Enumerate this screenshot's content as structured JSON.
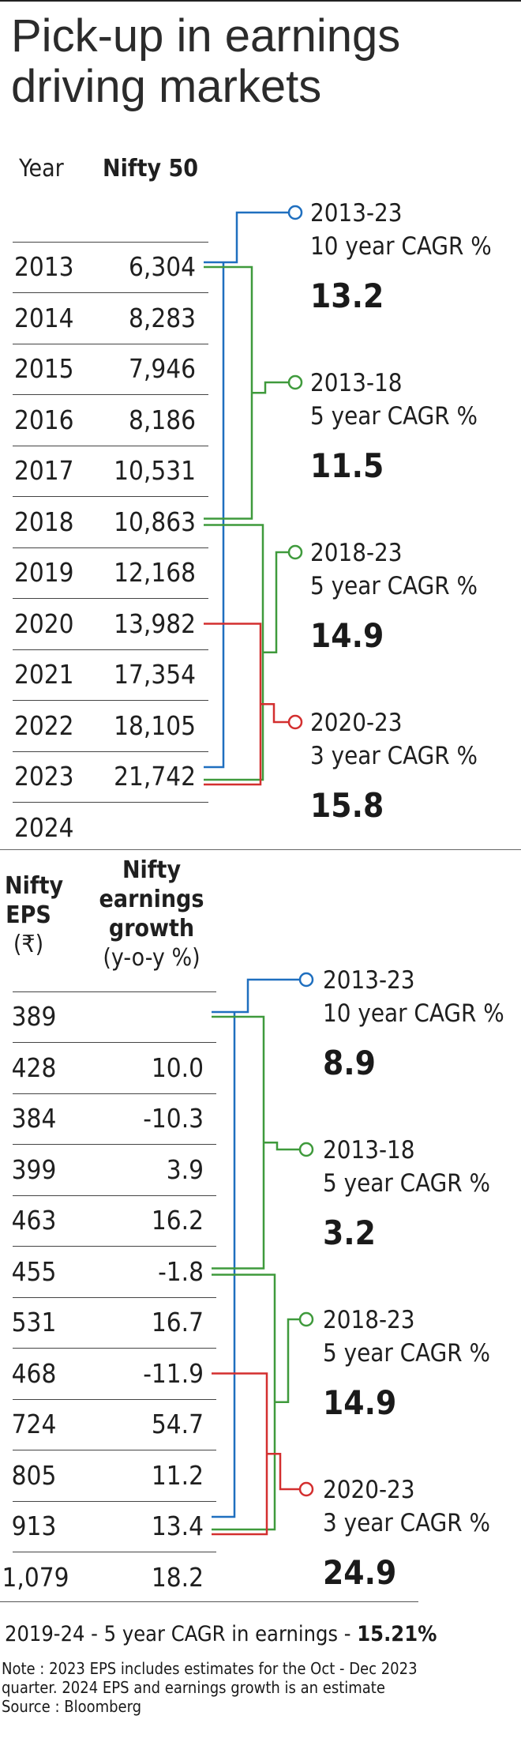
{
  "title": "Pick-up in earnings driving markets",
  "colors": {
    "blue": "#1f6fbf",
    "green": "#3f9a3c",
    "red": "#d32f2f"
  },
  "top": {
    "col_year": "Year",
    "col_nifty": "Nifty 50",
    "rows": [
      {
        "year": "2013",
        "value": "6,304"
      },
      {
        "year": "2014",
        "value": "8,283"
      },
      {
        "year": "2015",
        "value": "7,946"
      },
      {
        "year": "2016",
        "value": "8,186"
      },
      {
        "year": "2017",
        "value": "10,531"
      },
      {
        "year": "2018",
        "value": "10,863"
      },
      {
        "year": "2019",
        "value": "12,168"
      },
      {
        "year": "2020",
        "value": "13,982"
      },
      {
        "year": "2021",
        "value": "17,354"
      },
      {
        "year": "2022",
        "value": "18,105"
      },
      {
        "year": "2023",
        "value": "21,742"
      },
      {
        "year": "2024",
        "value": ""
      }
    ],
    "cagr": [
      {
        "period": "2013-23",
        "label": "10 year CAGR %",
        "value": "13.2",
        "color": "blue",
        "from": 0,
        "to": 10
      },
      {
        "period": "2013-18",
        "label": "5 year CAGR %",
        "value": "11.5",
        "color": "green",
        "from": 0,
        "to": 5
      },
      {
        "period": "2018-23",
        "label": "5 year CAGR %",
        "value": "14.9",
        "color": "green",
        "from": 5,
        "to": 10
      },
      {
        "period": "2020-23",
        "label": "3 year CAGR %",
        "value": "15.8",
        "color": "red",
        "from": 7,
        "to": 10
      }
    ]
  },
  "bottom": {
    "col_eps": "Nifty EPS (₹)",
    "col_eps_lines": [
      "Nifty",
      "EPS",
      "(₹)"
    ],
    "col_growth_lines": [
      "Nifty",
      "earnings",
      "growth",
      "(y-o-y %)"
    ],
    "rows": [
      {
        "eps": "389",
        "growth": ""
      },
      {
        "eps": "428",
        "growth": "10.0"
      },
      {
        "eps": "384",
        "growth": "-10.3"
      },
      {
        "eps": "399",
        "growth": "3.9"
      },
      {
        "eps": "463",
        "growth": "16.2"
      },
      {
        "eps": "455",
        "growth": "-1.8"
      },
      {
        "eps": "531",
        "growth": "16.7"
      },
      {
        "eps": "468",
        "growth": "-11.9"
      },
      {
        "eps": "724",
        "growth": "54.7"
      },
      {
        "eps": "805",
        "growth": "11.2"
      },
      {
        "eps": "913",
        "growth": "13.4"
      },
      {
        "eps": "1,079",
        "growth": "18.2"
      }
    ],
    "cagr": [
      {
        "period": "2013-23",
        "label": "10 year CAGR %",
        "value": "8.9",
        "color": "blue",
        "from": 0,
        "to": 10
      },
      {
        "period": "2013-18",
        "label": "5 year CAGR %",
        "value": "3.2",
        "color": "green",
        "from": 0,
        "to": 5
      },
      {
        "period": "2018-23",
        "label": "5 year CAGR %",
        "value": "14.9",
        "color": "green",
        "from": 5,
        "to": 10
      },
      {
        "period": "2020-23",
        "label": "3 year CAGR %",
        "value": "24.9",
        "color": "red",
        "from": 7,
        "to": 10
      }
    ]
  },
  "summary": {
    "text": "2019-24 - 5 year CAGR in earnings - ",
    "value": "15.21%"
  },
  "note": {
    "line1": "Note : 2023 EPS includes estimates for the Oct - Dec 2023",
    "line2": "quarter. 2024 EPS and earnings growth is an estimate",
    "line3": "Source : Bloomberg"
  },
  "chart_data": [
    {
      "type": "table",
      "columns": [
        "Year",
        "Nifty 50"
      ],
      "x": [
        2013,
        2014,
        2015,
        2016,
        2017,
        2018,
        2019,
        2020,
        2021,
        2022,
        2023,
        2024
      ],
      "series": [
        {
          "name": "Nifty 50",
          "values": [
            6304,
            8283,
            7946,
            8186,
            10531,
            10863,
            12168,
            13982,
            17354,
            18105,
            21742,
            null
          ]
        }
      ],
      "annotations": [
        {
          "period": "2013-23",
          "label": "10 year CAGR %",
          "value": 13.2
        },
        {
          "period": "2013-18",
          "label": "5 year CAGR %",
          "value": 11.5
        },
        {
          "period": "2018-23",
          "label": "5 year CAGR %",
          "value": 14.9
        },
        {
          "period": "2020-23",
          "label": "3 year CAGR %",
          "value": 15.8
        }
      ]
    },
    {
      "type": "table",
      "columns": [
        "Nifty EPS (₹)",
        "Nifty earnings growth (y-o-y %)"
      ],
      "x": [
        2013,
        2014,
        2015,
        2016,
        2017,
        2018,
        2019,
        2020,
        2021,
        2022,
        2023,
        2024
      ],
      "series": [
        {
          "name": "Nifty EPS (₹)",
          "values": [
            389,
            428,
            384,
            399,
            463,
            455,
            531,
            468,
            724,
            805,
            913,
            1079
          ]
        },
        {
          "name": "Nifty earnings growth (y-o-y %)",
          "values": [
            null,
            10.0,
            -10.3,
            3.9,
            16.2,
            -1.8,
            16.7,
            -11.9,
            54.7,
            11.2,
            13.4,
            18.2
          ]
        }
      ],
      "annotations": [
        {
          "period": "2013-23",
          "label": "10 year CAGR %",
          "value": 8.9
        },
        {
          "period": "2013-18",
          "label": "5 year CAGR %",
          "value": 3.2
        },
        {
          "period": "2018-23",
          "label": "5 year CAGR %",
          "value": 14.9
        },
        {
          "period": "2020-23",
          "label": "3 year CAGR %",
          "value": 24.9
        }
      ]
    }
  ]
}
